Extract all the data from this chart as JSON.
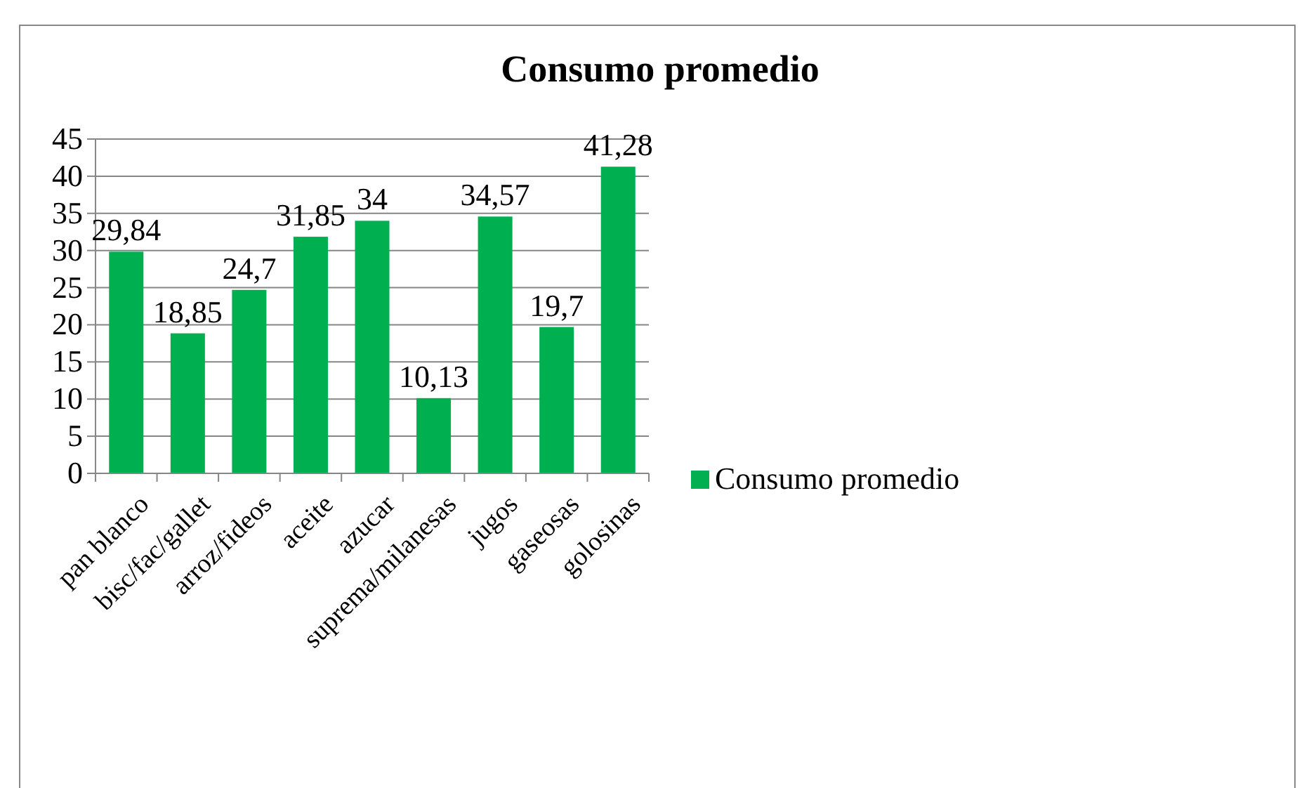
{
  "chart_data": {
    "type": "bar",
    "title": "Consumo promedio",
    "categories": [
      "pan blanco",
      "bisc/fac/gallet",
      "arroz/fideos",
      "aceite",
      "azucar",
      "suprema/milanesas",
      "jugos",
      "gaseosas",
      "golosinas"
    ],
    "series": [
      {
        "name": "Consumo promedio",
        "color": "#00b050",
        "values": [
          29.84,
          18.85,
          24.7,
          31.85,
          34,
          10.13,
          34.57,
          19.7,
          41.28
        ],
        "value_labels": [
          "29,84",
          "18,85",
          "24,7",
          "31,85",
          "34",
          "10,13",
          "34,57",
          "19,7",
          "41,28"
        ]
      }
    ],
    "ylim": [
      0,
      45
    ],
    "yticks": [
      0,
      5,
      10,
      15,
      20,
      25,
      30,
      35,
      40,
      45
    ],
    "grid": "y",
    "legend": "right"
  }
}
